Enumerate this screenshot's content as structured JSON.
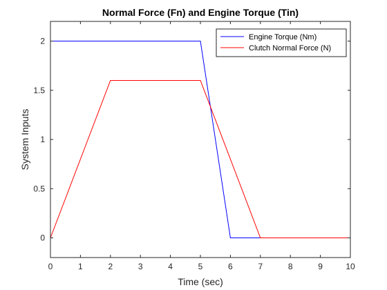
{
  "chart_data": {
    "type": "line",
    "title": "Normal Force (Fn) and Engine Torque (Tin)",
    "xlabel": "Time (sec)",
    "ylabel": "System Inputs",
    "xlim": [
      0,
      10
    ],
    "ylim": [
      -0.2,
      2.2
    ],
    "xticks": [
      0,
      1,
      2,
      3,
      4,
      5,
      6,
      7,
      8,
      9,
      10
    ],
    "xtick_labels": [
      "0",
      "1",
      "2",
      "3",
      "4",
      "5",
      "6",
      "7",
      "8",
      "9",
      "10"
    ],
    "yticks": [
      0,
      0.5,
      1,
      1.5,
      2
    ],
    "ytick_labels": [
      "0",
      "0.5",
      "1",
      "1.5",
      "2"
    ],
    "grid": false,
    "legend_position": "top-right",
    "series": [
      {
        "name": "Engine Torque (Nm)",
        "color": "#0000ff",
        "x": [
          0,
          5,
          6,
          10
        ],
        "y": [
          2,
          2,
          0,
          0
        ]
      },
      {
        "name": "Clutch Normal Force (N)",
        "color": "#ff0000",
        "x": [
          0,
          2,
          5,
          7,
          10
        ],
        "y": [
          0,
          1.6,
          1.6,
          0,
          0
        ]
      }
    ]
  }
}
